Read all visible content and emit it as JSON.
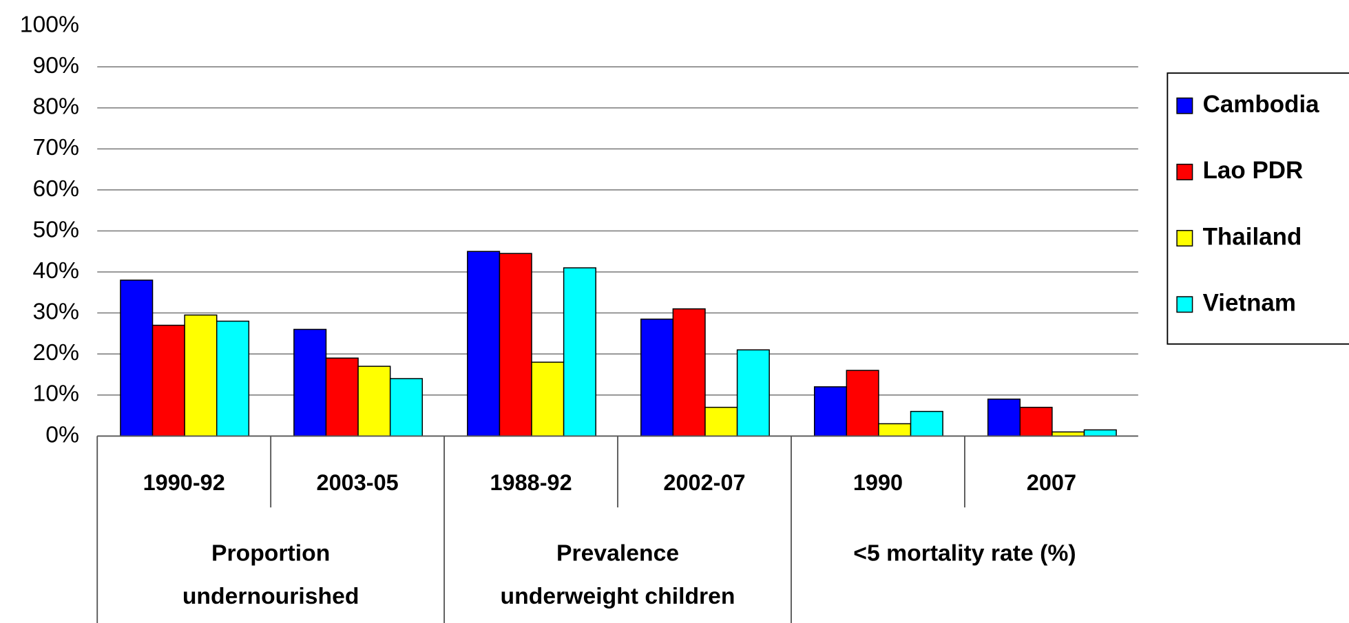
{
  "chart_data": {
    "type": "bar",
    "categories": [
      "1990-92",
      "2003-05",
      "1988-92",
      "2002-07",
      "1990",
      "2007"
    ],
    "groups": [
      [
        "Proportion",
        "undernourished"
      ],
      [
        "Prevalence",
        "underweight children"
      ],
      [
        "<5 mortality rate (%)"
      ]
    ],
    "series": [
      {
        "name": "Cambodia",
        "color": "#0000ff",
        "values": [
          38,
          26,
          45,
          28.5,
          12,
          9
        ]
      },
      {
        "name": "Lao PDR",
        "color": "#ff0000",
        "values": [
          27,
          19,
          44.5,
          31,
          16,
          7
        ]
      },
      {
        "name": "Thailand",
        "color": "#ffff00",
        "values": [
          29.5,
          17,
          18,
          7,
          3,
          1
        ]
      },
      {
        "name": "Vietnam",
        "color": "#00ffff",
        "values": [
          28,
          14,
          41,
          21,
          6,
          1.5
        ]
      }
    ],
    "ylim": [
      0,
      100
    ],
    "yticks": [
      {
        "value": 0,
        "label": "0%"
      },
      {
        "value": 10,
        "label": "10%"
      },
      {
        "value": 20,
        "label": "20%"
      },
      {
        "value": 30,
        "label": "30%"
      },
      {
        "value": 40,
        "label": "40%"
      },
      {
        "value": 50,
        "label": "50%"
      },
      {
        "value": 60,
        "label": "60%"
      },
      {
        "value": 70,
        "label": "70%"
      },
      {
        "value": 80,
        "label": "80%"
      },
      {
        "value": 90,
        "label": "90%"
      },
      {
        "value": 100,
        "label": "100%"
      }
    ],
    "grid": true,
    "legend": "right"
  }
}
